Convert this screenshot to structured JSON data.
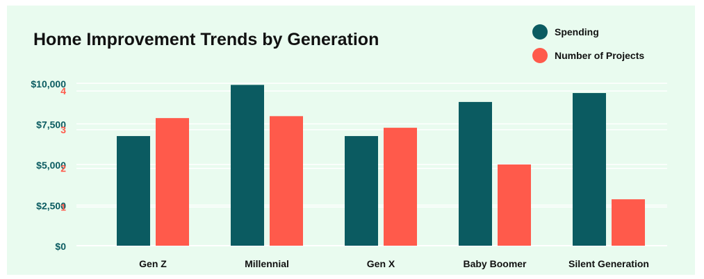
{
  "colors": {
    "background": "#e9fbef",
    "spending": "#0b5b61",
    "projects": "#ff5a4b",
    "grid": "#ffffff",
    "title": "#111111",
    "left_axis_text": "#0b5b61",
    "right_axis_text": "#ff5a4b"
  },
  "chart_data": {
    "type": "bar",
    "title": "Home Improvement Trends by Generation",
    "categories": [
      "Gen Z",
      "Millennial",
      "Gen X",
      "Baby Boomer",
      "Silent Generation"
    ],
    "series": [
      {
        "name": "Spending",
        "axis": "spending",
        "values": [
          6750,
          9900,
          6750,
          8850,
          9400
        ]
      },
      {
        "name": "Number of Projects",
        "axis": "projects",
        "values": [
          3.3,
          3.35,
          3.05,
          2.1,
          1.2
        ]
      }
    ],
    "spending_axis": {
      "ylim": [
        0,
        10000
      ],
      "ticks": [
        0,
        2500,
        5000,
        7500,
        10000
      ],
      "tick_labels": [
        "$0",
        "$2,500",
        "$5,000",
        "$7,500",
        "$10,000"
      ]
    },
    "projects_axis": {
      "ylim": [
        0,
        4.2
      ],
      "ticks": [
        1,
        2,
        3,
        4
      ],
      "tick_labels": [
        "1",
        "2",
        "3",
        "4"
      ]
    },
    "grid": true,
    "legend": {
      "placement": "top-right",
      "entries": [
        "Spending",
        "Number of Projects"
      ]
    }
  }
}
